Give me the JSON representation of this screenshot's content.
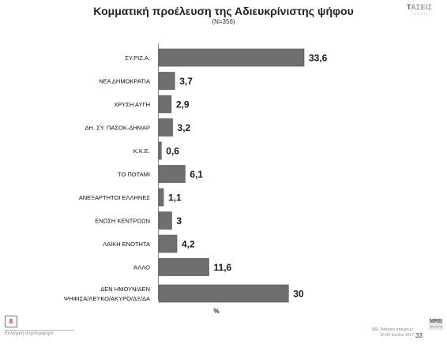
{
  "header": {
    "title": "Κομματική προέλευση της Αδιευκρίνιστης ψήφου",
    "subtitle": "(N=356)"
  },
  "brand": {
    "prefix": "",
    "accent": "Τ",
    "name": "ΑΣΕΙΣ",
    "tagline": "ΤΑΣΕΙΣ"
  },
  "chart_data": {
    "type": "bar",
    "orientation": "horizontal",
    "categories": [
      "ΣΥ.ΡΙΖ.Α.",
      "ΝΕΑ ΔΗΜΟΚΡΑΤΙΑ",
      "ΧΡΥΣΗ ΑΥΓΗ",
      "ΔΗ. ΣΥ. ΠΑΣΟΚ-ΔΗΜΑΡ",
      "Κ.Κ.Ε.",
      "ΤΟ ΠΟΤΑΜΙ",
      "ΑΝΕΞΑΡΤΗΤΟΙ ΕΛΛΗΝΕΣ",
      "ΕΝΩΣΗ ΚΕΝΤΡΩΩΝ",
      "ΛΑΪΚΗ ΕΝΟΤΗΤΑ",
      "ΆΛΛΟ",
      "ΔΕΝ ΗΜΟΥΝ/ΔΕΝ ΨΗΦΙΣΑ/ΛΕΥΚΟ/ΑΚΥΡΟ/ΔΞ/ΔΑ"
    ],
    "category_lines": [
      [
        "ΣΥ.ΡΙΖ.Α."
      ],
      [
        "ΝΕΑ ΔΗΜΟΚΡΑΤΙΑ"
      ],
      [
        "ΧΡΥΣΗ ΑΥΓΗ"
      ],
      [
        "ΔΗ. ΣΥ. ΠΑΣΟΚ-ΔΗΜΑΡ"
      ],
      [
        "Κ.Κ.Ε."
      ],
      [
        "ΤΟ ΠΟΤΑΜΙ"
      ],
      [
        "ΑΝΕΞΑΡΤΗΤΟΙ ΕΛΛΗΝΕΣ"
      ],
      [
        "ΕΝΩΣΗ ΚΕΝΤΡΩΩΝ"
      ],
      [
        "ΛΑΪΚΗ ΕΝΟΤΗΤΑ"
      ],
      [
        "ΆΛΛΟ"
      ],
      [
        "ΔΕΝ ΗΜΟΥΝ/ΔΕΝ",
        "ΨΗΦΙΣΑ/ΛΕΥΚΟ/ΑΚΥΡΟ/ΔΞ/ΔΑ"
      ]
    ],
    "values": [
      33.6,
      3.7,
      2.9,
      3.2,
      0.6,
      6.1,
      1.1,
      3,
      4.2,
      11.6,
      30
    ],
    "value_labels": [
      "33,6",
      "3,7",
      "2,9",
      "3,2",
      "0,6",
      "6,1",
      "1,1",
      "3",
      "4,2",
      "11,6",
      "30"
    ],
    "xlabel": "%",
    "xlim": [
      0,
      33.6
    ],
    "grid": false,
    "bar_color": "#6f6f6f",
    "bar_border": "#4d4d4d"
  },
  "footer": {
    "page_box": "8",
    "text": "Εκλογική συμπεριφορά",
    "source_line1": "MR, διάλογοι στοιχείων:",
    "source_line2": "20-29 Ιουνίου 2017",
    "page_number": "33",
    "mrb_main": "MRB",
    "mrb_sub": "HELLAS SA"
  }
}
